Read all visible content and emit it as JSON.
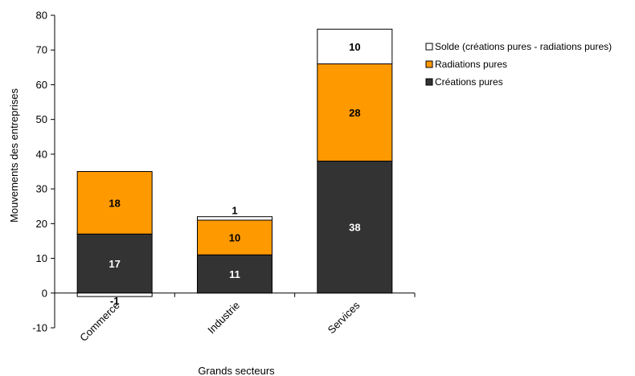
{
  "chart_data": {
    "type": "bar",
    "stacked": true,
    "categories": [
      "Commerce",
      "Industrie",
      "Services"
    ],
    "series": [
      {
        "name": "Créations pures",
        "values": [
          17,
          11,
          38
        ],
        "color": "#333333",
        "label_color": "#ffffff"
      },
      {
        "name": "Radiations pures",
        "values": [
          18,
          10,
          28
        ],
        "color": "#ff9900",
        "label_color": "#000000"
      },
      {
        "name": "Solde (créations pures - radiations pures)",
        "values": [
          -1,
          1,
          10
        ],
        "color": "#ffffff",
        "label_color": "#000000"
      }
    ],
    "xlabel": "Grands secteurs",
    "ylabel": "Mouvements des entreprises",
    "ylim": [
      -10,
      80
    ],
    "yticks": [
      -10,
      0,
      10,
      20,
      30,
      40,
      50,
      60,
      70,
      80
    ],
    "grid": false,
    "legend_position": "top-right"
  }
}
